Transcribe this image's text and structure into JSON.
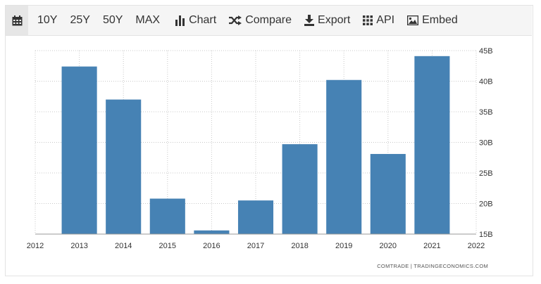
{
  "toolbar": {
    "calendar_icon": "calendar-icon",
    "items": [
      {
        "label": "10Y"
      },
      {
        "label": "25Y"
      },
      {
        "label": "50Y"
      },
      {
        "label": "MAX"
      },
      {
        "label": "Chart",
        "icon": "bar-chart-icon"
      },
      {
        "label": "Compare",
        "icon": "shuffle-icon"
      },
      {
        "label": "Export",
        "icon": "download-icon"
      },
      {
        "label": "API",
        "icon": "grid-icon"
      },
      {
        "label": "Embed",
        "icon": "image-icon"
      }
    ]
  },
  "credits": "COMTRADE | TRADINGECONOMICS.COM",
  "colors": {
    "bar": "#4682b4",
    "grid": "#c8c8c8",
    "axis_text": "#333333"
  },
  "chart_data": {
    "type": "bar",
    "title": "",
    "xlabel": "",
    "ylabel": "",
    "x_tick_labels": [
      "2012",
      "2013",
      "2014",
      "2015",
      "2016",
      "2017",
      "2018",
      "2019",
      "2020",
      "2021",
      "2022"
    ],
    "x_range": [
      2012,
      2022
    ],
    "y_tick_labels": [
      "15B",
      "20B",
      "25B",
      "30B",
      "35B",
      "40B",
      "45B"
    ],
    "y_ticks": [
      15,
      20,
      25,
      30,
      35,
      40,
      45
    ],
    "ylim": [
      15,
      45
    ],
    "y_axis_position": "right",
    "grid": true,
    "legend": "none",
    "categories": [
      "2013",
      "2014",
      "2015",
      "2016",
      "2017",
      "2018",
      "2019",
      "2020",
      "2021"
    ],
    "values": [
      42.4,
      37.0,
      20.8,
      15.6,
      20.5,
      29.7,
      40.2,
      28.1,
      44.1
    ],
    "unit": "B"
  }
}
